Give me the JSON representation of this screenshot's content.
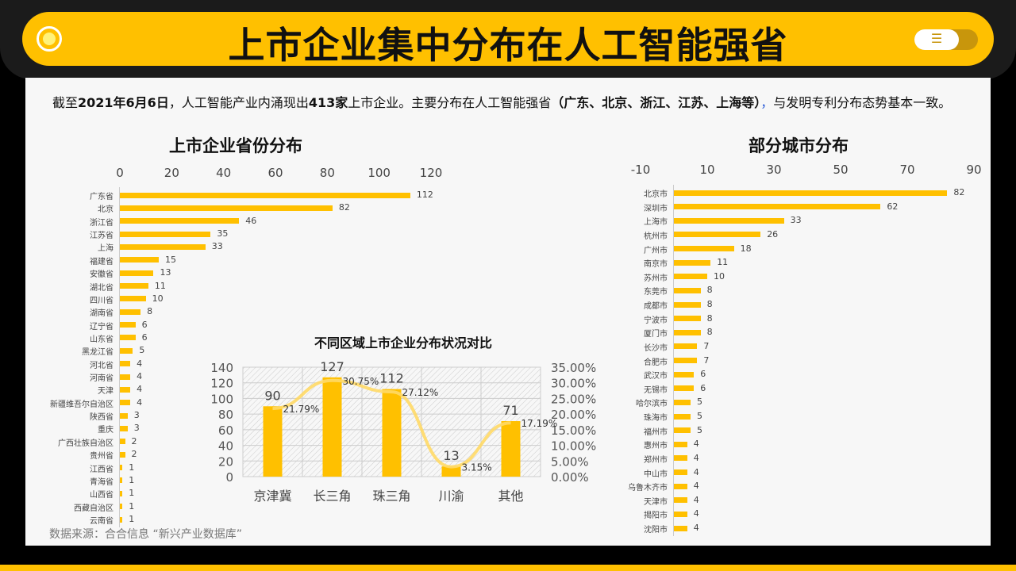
{
  "header": {
    "title": "上市企业集中分布在人工智能强省"
  },
  "intro": {
    "p1": "截至",
    "date": "2021年6月6日",
    "p2": "，人工智能产业内涌现出",
    "count": "413家",
    "p3": "上市企业。主要分布在人工智能强省",
    "provinces": "（广东、北京、浙江、江苏、上海等）",
    "comma": "，",
    "p4": "与发明专利分布态势基本一致。"
  },
  "source": "数据来源：合合信息 “新兴产业数据库”",
  "chart_data": [
    {
      "type": "bar",
      "orientation": "horizontal",
      "title": "上市企业省份分布",
      "xlim": [
        0,
        120
      ],
      "ticks": [
        "0",
        "20",
        "40",
        "60",
        "80",
        "100",
        "120"
      ],
      "categories": [
        "广东省",
        "北京",
        "浙江省",
        "江苏省",
        "上海",
        "福建省",
        "安徽省",
        "湖北省",
        "四川省",
        "湖南省",
        "辽宁省",
        "山东省",
        "黑龙江省",
        "河北省",
        "河南省",
        "天津",
        "新疆维吾尔自治区",
        "陕西省",
        "重庆",
        "广西壮族自治区",
        "贵州省",
        "江西省",
        "青海省",
        "山西省",
        "西藏自治区",
        "云南省"
      ],
      "values": [
        112,
        82,
        46,
        35,
        33,
        15,
        13,
        11,
        10,
        8,
        6,
        6,
        5,
        4,
        4,
        4,
        4,
        3,
        3,
        2,
        2,
        1,
        1,
        1,
        1,
        1
      ]
    },
    {
      "type": "bar",
      "orientation": "horizontal",
      "title": "部分城市分布",
      "xlim": [
        -10,
        90
      ],
      "ticks": [
        "-10",
        "10",
        "30",
        "50",
        "70",
        "90"
      ],
      "categories": [
        "北京市",
        "深圳市",
        "上海市",
        "杭州市",
        "广州市",
        "南京市",
        "苏州市",
        "东莞市",
        "成都市",
        "宁波市",
        "厦门市",
        "长沙市",
        "合肥市",
        "武汉市",
        "无锡市",
        "哈尔滨市",
        "珠海市",
        "福州市",
        "惠州市",
        "郑州市",
        "中山市",
        "乌鲁木齐市",
        "天津市",
        "揭阳市",
        "沈阳市"
      ],
      "values": [
        82,
        62,
        33,
        26,
        18,
        11,
        10,
        8,
        8,
        8,
        8,
        7,
        7,
        6,
        6,
        5,
        5,
        5,
        4,
        4,
        4,
        4,
        4,
        4,
        4
      ]
    },
    {
      "type": "bar+line",
      "title": "不同区域上市企业分布状况对比",
      "categories": [
        "京津冀",
        "长三角",
        "珠三角",
        "川渝",
        "其他"
      ],
      "bar_values": [
        90,
        127,
        112,
        13,
        71
      ],
      "line_values": [
        21.79,
        30.75,
        27.12,
        3.15,
        17.19
      ],
      "line_labels": [
        "21.79%",
        "30.75%",
        "27.12%",
        "3.15%",
        "17.19%"
      ],
      "ylim_left": [
        0,
        140
      ],
      "yticks_left": [
        "0",
        "20",
        "40",
        "60",
        "80",
        "100",
        "120",
        "140"
      ],
      "ylim_right": [
        0,
        35
      ],
      "yticks_right": [
        "0.00%",
        "5.00%",
        "10.00%",
        "15.00%",
        "20.00%",
        "25.00%",
        "30.00%",
        "35.00%"
      ]
    }
  ],
  "colors": {
    "accent": "#FFC000",
    "line": "#FFD966"
  }
}
